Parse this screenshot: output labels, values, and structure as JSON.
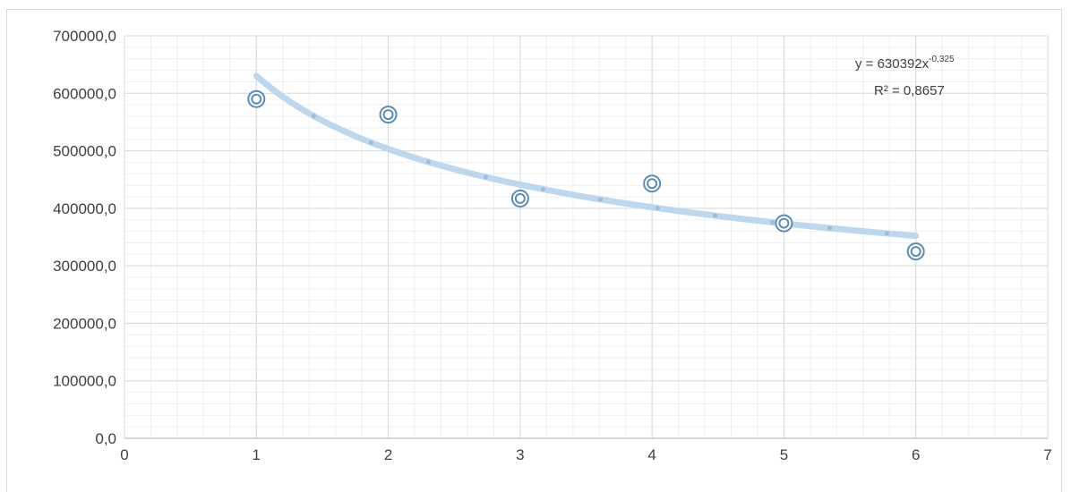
{
  "header": {
    "fragment": ""
  },
  "chart_data": {
    "type": "scatter",
    "title": "",
    "xlabel": "",
    "ylabel": "",
    "xlim": [
      0,
      7
    ],
    "ylim": [
      0,
      700000
    ],
    "x_ticks": [
      0,
      1,
      2,
      3,
      4,
      5,
      6,
      7
    ],
    "x_tick_labels": [
      "0",
      "1",
      "2",
      "3",
      "4",
      "5",
      "6",
      "7"
    ],
    "y_ticks": [
      0,
      100000,
      200000,
      300000,
      400000,
      500000,
      600000,
      700000
    ],
    "y_tick_labels": [
      "0,0",
      "100000,0",
      "200000,0",
      "300000,0",
      "400000,0",
      "500000,0",
      "600000,0",
      "700000,0"
    ],
    "grid": {
      "major": true,
      "minor": true
    },
    "colors": {
      "points": "#5b8cb8",
      "trendline": "#bdd7ee",
      "grid_major": "#d9d9d9",
      "grid_minor": "#efefef"
    },
    "series": [
      {
        "x": [
          1,
          2,
          3,
          4,
          5,
          6
        ],
        "y": [
          590000,
          563000,
          417000,
          443000,
          374000,
          325000
        ]
      }
    ],
    "trendline": {
      "type": "power",
      "a": 630392,
      "b": -0.325,
      "x_range": [
        1,
        6
      ],
      "equation_prefix": "y = 630392x",
      "equation_exponent": "-0,325",
      "r_squared_label": "R² = 0,8657"
    }
  }
}
